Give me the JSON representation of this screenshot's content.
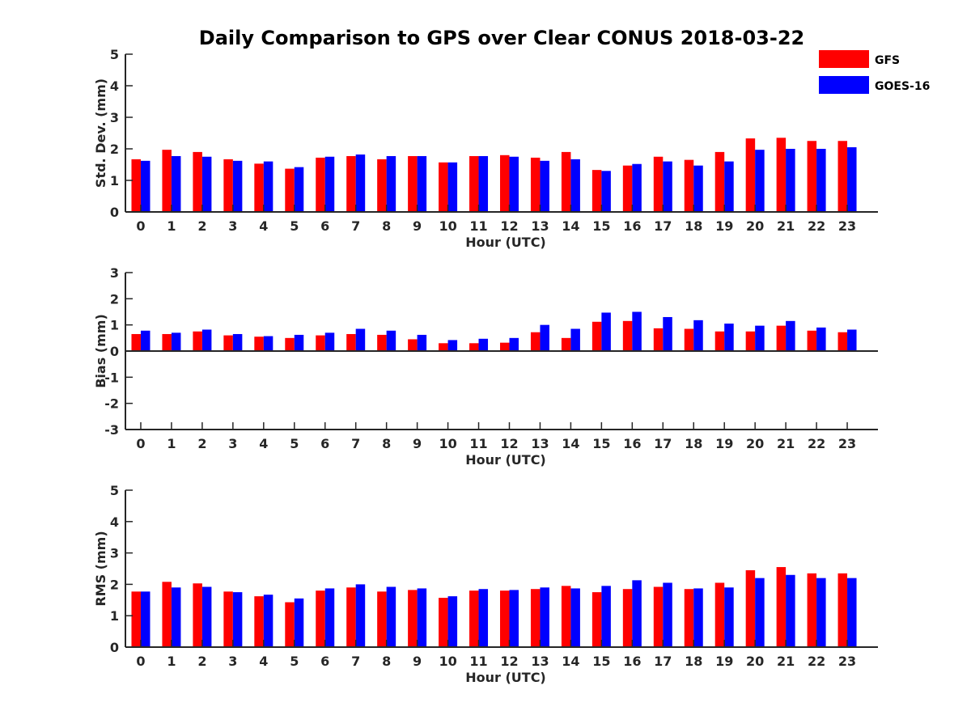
{
  "chart_data": {
    "title": "Daily Comparison to GPS over Clear CONUS 2018-03-22",
    "legend": [
      {
        "name": "GFS",
        "color": "#ff0000"
      },
      {
        "name": "GOES-16",
        "color": "#0000ff"
      }
    ],
    "legend_position": "top-right",
    "panels": [
      {
        "type": "bar",
        "ylabel": "Std. Dev. (mm)",
        "xlabel": "Hour (UTC)",
        "ylim": [
          0,
          5
        ],
        "yticks": [
          0,
          1,
          2,
          3,
          4,
          5
        ],
        "categories": [
          "0",
          "1",
          "2",
          "3",
          "4",
          "5",
          "6",
          "7",
          "8",
          "9",
          "10",
          "11",
          "12",
          "13",
          "14",
          "15",
          "16",
          "17",
          "18",
          "19",
          "20",
          "21",
          "22",
          "23"
        ],
        "series": [
          {
            "name": "GFS",
            "values": [
              1.67,
              1.97,
              1.9,
              1.67,
              1.53,
              1.37,
              1.72,
              1.77,
              1.67,
              1.77,
              1.57,
              1.77,
              1.8,
              1.72,
              1.9,
              1.33,
              1.47,
              1.75,
              1.65,
              1.9,
              2.33,
              2.35,
              2.25,
              2.25
            ]
          },
          {
            "name": "GOES-16",
            "values": [
              1.62,
              1.77,
              1.75,
              1.62,
              1.6,
              1.42,
              1.75,
              1.82,
              1.77,
              1.77,
              1.57,
              1.77,
              1.75,
              1.62,
              1.67,
              1.3,
              1.52,
              1.6,
              1.47,
              1.6,
              1.97,
              2.0,
              2.0,
              2.05
            ]
          }
        ]
      },
      {
        "type": "bar",
        "ylabel": "Bias (mm)",
        "xlabel": "Hour (UTC)",
        "ylim": [
          -3,
          3
        ],
        "yticks": [
          -3,
          -2,
          -1,
          0,
          1,
          2,
          3
        ],
        "categories": [
          "0",
          "1",
          "2",
          "3",
          "4",
          "5",
          "6",
          "7",
          "8",
          "9",
          "10",
          "11",
          "12",
          "13",
          "14",
          "15",
          "16",
          "17",
          "18",
          "19",
          "20",
          "21",
          "22",
          "23"
        ],
        "series": [
          {
            "name": "GFS",
            "values": [
              0.65,
              0.65,
              0.75,
              0.6,
              0.55,
              0.5,
              0.6,
              0.65,
              0.62,
              0.45,
              0.3,
              0.3,
              0.32,
              0.72,
              0.5,
              1.12,
              1.15,
              0.87,
              0.85,
              0.75,
              0.75,
              0.97,
              0.78,
              0.72
            ]
          },
          {
            "name": "GOES-16",
            "values": [
              0.78,
              0.7,
              0.82,
              0.65,
              0.57,
              0.62,
              0.7,
              0.85,
              0.78,
              0.62,
              0.42,
              0.47,
              0.5,
              1.0,
              0.85,
              1.47,
              1.5,
              1.3,
              1.18,
              1.05,
              0.97,
              1.15,
              0.9,
              0.82
            ]
          }
        ]
      },
      {
        "type": "bar",
        "ylabel": "RMS (mm)",
        "xlabel": "Hour (UTC)",
        "ylim": [
          0,
          5
        ],
        "yticks": [
          0,
          1,
          2,
          3,
          4,
          5
        ],
        "categories": [
          "0",
          "1",
          "2",
          "3",
          "4",
          "5",
          "6",
          "7",
          "8",
          "9",
          "10",
          "11",
          "12",
          "13",
          "14",
          "15",
          "16",
          "17",
          "18",
          "19",
          "20",
          "21",
          "22",
          "23"
        ],
        "series": [
          {
            "name": "GFS",
            "values": [
              1.77,
              2.08,
              2.03,
              1.77,
              1.62,
              1.43,
              1.8,
              1.9,
              1.77,
              1.82,
              1.57,
              1.8,
              1.8,
              1.85,
              1.95,
              1.75,
              1.85,
              1.92,
              1.85,
              2.05,
              2.45,
              2.55,
              2.35,
              2.35
            ]
          },
          {
            "name": "GOES-16",
            "values": [
              1.77,
              1.9,
              1.92,
              1.75,
              1.67,
              1.55,
              1.87,
              2.0,
              1.92,
              1.87,
              1.62,
              1.85,
              1.82,
              1.9,
              1.87,
              1.95,
              2.13,
              2.05,
              1.87,
              1.9,
              2.2,
              2.3,
              2.2,
              2.2
            ]
          }
        ]
      }
    ]
  }
}
